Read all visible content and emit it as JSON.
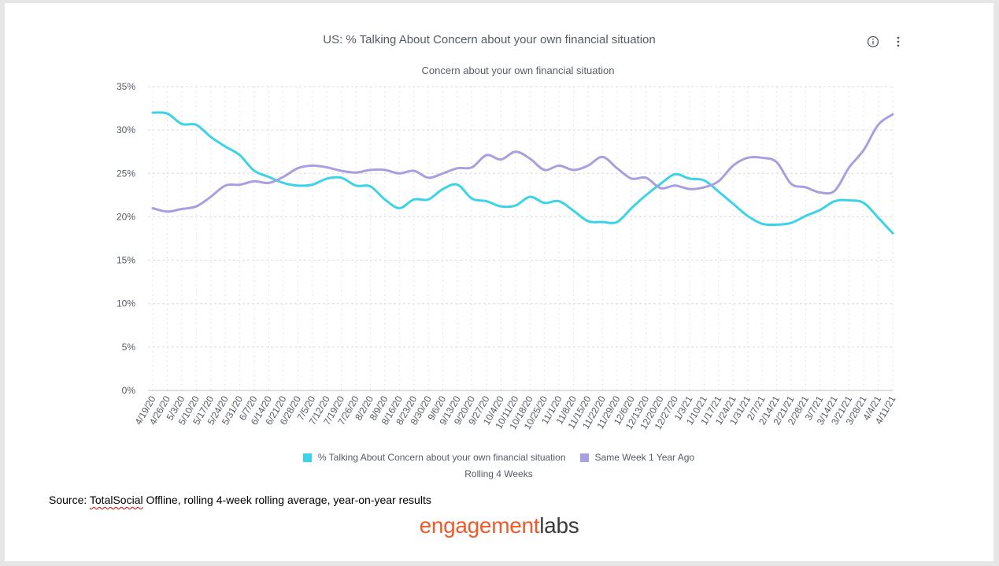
{
  "header": {
    "title": "US: % Talking About Concern about your own financial situation",
    "info_icon": "info-circle-icon",
    "menu_icon": "vertical-ellipsis-icon"
  },
  "colors": {
    "series1": "#3dd3e6",
    "series2": "#a89fe0",
    "grid": "#dcdcdc",
    "text": "#555b66"
  },
  "footer": {
    "source_prefix": "Source: ",
    "source_brand": "TotalSocial",
    "source_rest": " Offline, rolling 4-week rolling average, year-on-year results",
    "logo_part1": "engagement",
    "logo_part2": "labs"
  },
  "chart_data": {
    "type": "line",
    "title": "Concern about your own financial situation",
    "xlabel": "Rolling 4 Weeks",
    "ylabel": "",
    "ylim": [
      0,
      35
    ],
    "yticks": [
      "0%",
      "5%",
      "10%",
      "15%",
      "20%",
      "25%",
      "30%",
      "35%"
    ],
    "grid": true,
    "legend_position": "bottom",
    "categories": [
      "4/19/20",
      "4/26/20",
      "5/3/20",
      "5/10/20",
      "5/17/20",
      "5/24/20",
      "5/31/20",
      "6/7/20",
      "6/14/20",
      "6/21/20",
      "6/28/20",
      "7/5/20",
      "7/12/20",
      "7/19/20",
      "7/26/20",
      "8/2/20",
      "8/9/20",
      "8/16/20",
      "8/23/20",
      "8/30/20",
      "9/6/20",
      "9/13/20",
      "9/20/20",
      "9/27/20",
      "10/4/20",
      "10/11/20",
      "10/18/20",
      "10/25/20",
      "11/1/20",
      "11/8/20",
      "11/15/20",
      "11/22/20",
      "11/29/20",
      "12/6/20",
      "12/13/20",
      "12/20/20",
      "12/27/20",
      "1/3/21",
      "1/10/21",
      "1/17/21",
      "1/24/21",
      "1/31/21",
      "2/7/21",
      "2/14/21",
      "2/21/21",
      "2/28/21",
      "3/7/21",
      "3/14/21",
      "3/21/21",
      "3/28/21",
      "4/4/21",
      "4/11/21"
    ],
    "series": [
      {
        "name": "% Talking About Concern about your own financial situation",
        "values": [
          32.0,
          31.9,
          30.7,
          30.6,
          29.2,
          28.1,
          27.1,
          25.3,
          24.6,
          23.9,
          23.6,
          23.7,
          24.4,
          24.5,
          23.6,
          23.5,
          22.0,
          21.0,
          22.0,
          22.0,
          23.2,
          23.7,
          22.1,
          21.8,
          21.2,
          21.3,
          22.3,
          21.6,
          21.8,
          20.7,
          19.5,
          19.4,
          19.4,
          21.0,
          22.5,
          23.8,
          24.9,
          24.4,
          24.2,
          22.9,
          21.5,
          20.1,
          19.2,
          19.1,
          19.3,
          20.1,
          20.8,
          21.8,
          21.9,
          21.6,
          19.9,
          18.1
        ]
      },
      {
        "name": "Same Week 1 Year Ago",
        "values": [
          21.0,
          20.6,
          20.9,
          21.2,
          22.3,
          23.6,
          23.7,
          24.1,
          23.9,
          24.6,
          25.6,
          25.9,
          25.7,
          25.3,
          25.1,
          25.4,
          25.4,
          25.0,
          25.3,
          24.5,
          25.0,
          25.6,
          25.7,
          27.1,
          26.6,
          27.5,
          26.7,
          25.4,
          25.9,
          25.4,
          25.9,
          26.9,
          25.6,
          24.4,
          24.5,
          23.3,
          23.6,
          23.2,
          23.4,
          24.1,
          25.9,
          26.8,
          26.8,
          26.3,
          23.8,
          23.4,
          22.8,
          23.0,
          25.7,
          27.7,
          30.6,
          31.8
        ]
      }
    ]
  }
}
